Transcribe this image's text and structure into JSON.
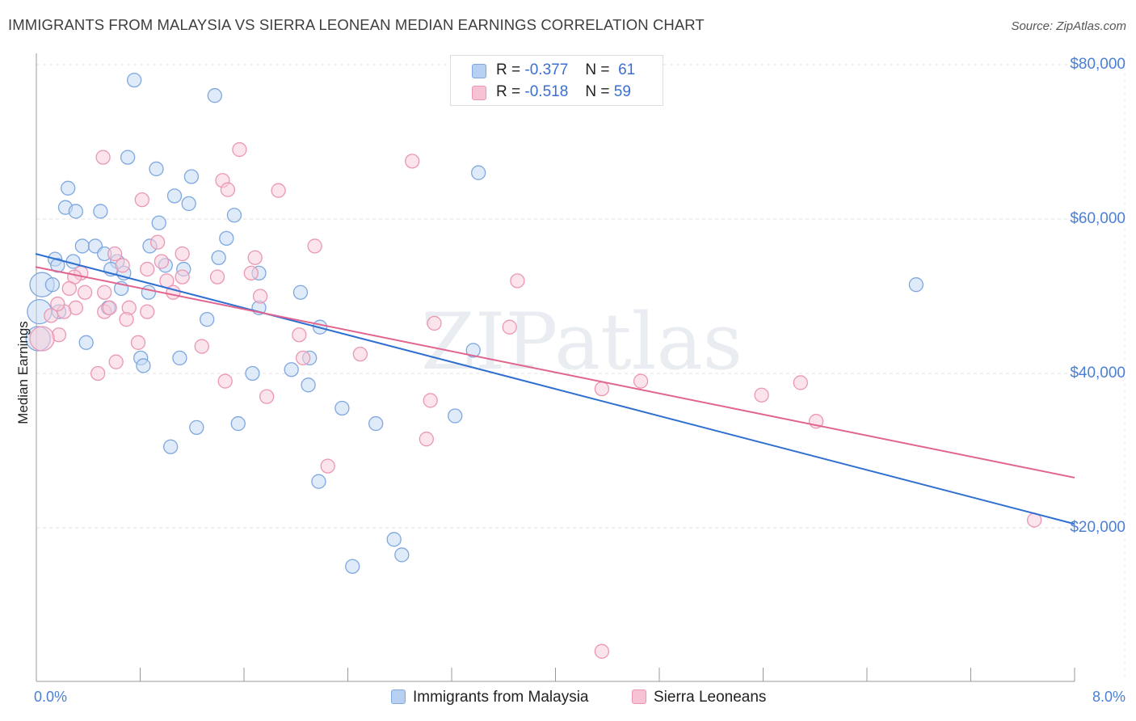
{
  "chart_data": {
    "type": "scatter",
    "title": "IMMIGRANTS FROM MALAYSIA VS SIERRA LEONEAN MEDIAN EARNINGS CORRELATION CHART",
    "source": "Source: ZipAtlas.com",
    "watermark": "ZIPatlas",
    "xlabel": "",
    "ylabel": "Median Earnings",
    "xlim": [
      0,
      8
    ],
    "ylim": [
      0,
      82000
    ],
    "x_tick_labels": [
      "0.0%",
      "8.0%"
    ],
    "y_ticks": [
      {
        "value": 20000,
        "label": "$20,000"
      },
      {
        "value": 40000,
        "label": "$40,000"
      },
      {
        "value": 60000,
        "label": "$60,000"
      },
      {
        "value": 80000,
        "label": "$80,000"
      }
    ],
    "grid": true,
    "legend": {
      "placement": "top-center",
      "rows": [
        {
          "r_label": "R =",
          "r_value": "-0.377",
          "n_label": "N =",
          "n_value": "61"
        },
        {
          "r_label": "R =",
          "r_value": "-0.518",
          "n_label": "N =",
          "n_value": "59"
        }
      ]
    },
    "series": [
      {
        "name": "Immigrants from Malaysia",
        "color": "#7fa7e0",
        "fill": "#c6daf4",
        "line_color": "#2f6fd0",
        "trend": {
          "x": [
            0,
            8
          ],
          "y": [
            55500,
            20500
          ]
        },
        "points": [
          {
            "x": 0.76,
            "y": 78000
          },
          {
            "x": 1.38,
            "y": 76000
          },
          {
            "x": 0.71,
            "y": 68000
          },
          {
            "x": 0.93,
            "y": 66500
          },
          {
            "x": 3.41,
            "y": 66000
          },
          {
            "x": 1.2,
            "y": 65500
          },
          {
            "x": 0.25,
            "y": 64000
          },
          {
            "x": 1.07,
            "y": 63000
          },
          {
            "x": 1.18,
            "y": 62000
          },
          {
            "x": 0.23,
            "y": 61500
          },
          {
            "x": 0.31,
            "y": 61000
          },
          {
            "x": 0.5,
            "y": 61000
          },
          {
            "x": 1.53,
            "y": 60500
          },
          {
            "x": 0.95,
            "y": 59500
          },
          {
            "x": 1.47,
            "y": 57500
          },
          {
            "x": 0.36,
            "y": 56500
          },
          {
            "x": 0.46,
            "y": 56500
          },
          {
            "x": 0.88,
            "y": 56500
          },
          {
            "x": 0.53,
            "y": 55500
          },
          {
            "x": 1.41,
            "y": 55000
          },
          {
            "x": 0.15,
            "y": 54800
          },
          {
            "x": 0.29,
            "y": 54500
          },
          {
            "x": 0.63,
            "y": 54500
          },
          {
            "x": 0.17,
            "y": 54000
          },
          {
            "x": 1.0,
            "y": 54000
          },
          {
            "x": 0.58,
            "y": 53500
          },
          {
            "x": 1.14,
            "y": 53500
          },
          {
            "x": 0.68,
            "y": 53000
          },
          {
            "x": 1.72,
            "y": 53000
          },
          {
            "x": 0.05,
            "y": 51500,
            "big": true
          },
          {
            "x": 0.13,
            "y": 51500
          },
          {
            "x": 0.66,
            "y": 51000
          },
          {
            "x": 6.78,
            "y": 51500
          },
          {
            "x": 0.87,
            "y": 50500
          },
          {
            "x": 2.04,
            "y": 50500
          },
          {
            "x": 0.56,
            "y": 48500
          },
          {
            "x": 1.72,
            "y": 48500
          },
          {
            "x": 0.03,
            "y": 48000,
            "big": true
          },
          {
            "x": 1.32,
            "y": 47000
          },
          {
            "x": 2.19,
            "y": 46000
          },
          {
            "x": 0.39,
            "y": 44000
          },
          {
            "x": 0.02,
            "y": 44500,
            "big": true
          },
          {
            "x": 3.37,
            "y": 43000
          },
          {
            "x": 0.81,
            "y": 42000
          },
          {
            "x": 1.11,
            "y": 42000
          },
          {
            "x": 2.11,
            "y": 42000
          },
          {
            "x": 0.83,
            "y": 41000
          },
          {
            "x": 1.67,
            "y": 40000
          },
          {
            "x": 1.97,
            "y": 40500
          },
          {
            "x": 2.1,
            "y": 38500
          },
          {
            "x": 2.36,
            "y": 35500
          },
          {
            "x": 3.23,
            "y": 34500
          },
          {
            "x": 1.56,
            "y": 33500
          },
          {
            "x": 2.62,
            "y": 33500
          },
          {
            "x": 1.24,
            "y": 33000
          },
          {
            "x": 1.04,
            "y": 30500
          },
          {
            "x": 2.18,
            "y": 26000
          },
          {
            "x": 2.76,
            "y": 18500
          },
          {
            "x": 2.82,
            "y": 16500
          },
          {
            "x": 2.44,
            "y": 15000
          },
          {
            "x": 0.18,
            "y": 48000
          }
        ]
      },
      {
        "name": "Sierra Leoneans",
        "color": "#eb97b4",
        "fill": "#f8cddb",
        "line_color": "#e0648e",
        "trend": {
          "x": [
            0,
            8
          ],
          "y": [
            53800,
            26500
          ]
        },
        "points": [
          {
            "x": 1.57,
            "y": 69000
          },
          {
            "x": 0.52,
            "y": 68000
          },
          {
            "x": 2.9,
            "y": 67500
          },
          {
            "x": 1.44,
            "y": 65000
          },
          {
            "x": 1.48,
            "y": 63800
          },
          {
            "x": 1.87,
            "y": 63700
          },
          {
            "x": 0.82,
            "y": 62500
          },
          {
            "x": 0.94,
            "y": 57000
          },
          {
            "x": 2.15,
            "y": 56500
          },
          {
            "x": 0.61,
            "y": 55500
          },
          {
            "x": 1.13,
            "y": 55500
          },
          {
            "x": 1.69,
            "y": 55000
          },
          {
            "x": 0.97,
            "y": 54500
          },
          {
            "x": 0.67,
            "y": 54000
          },
          {
            "x": 0.86,
            "y": 53500
          },
          {
            "x": 0.35,
            "y": 53000
          },
          {
            "x": 1.66,
            "y": 53000
          },
          {
            "x": 0.3,
            "y": 52500
          },
          {
            "x": 1.4,
            "y": 52500
          },
          {
            "x": 1.13,
            "y": 52500
          },
          {
            "x": 1.01,
            "y": 52000
          },
          {
            "x": 3.71,
            "y": 52000
          },
          {
            "x": 0.26,
            "y": 51000
          },
          {
            "x": 0.38,
            "y": 50500
          },
          {
            "x": 0.53,
            "y": 50500
          },
          {
            "x": 1.06,
            "y": 50500
          },
          {
            "x": 0.53,
            "y": 48000
          },
          {
            "x": 0.72,
            "y": 48500
          },
          {
            "x": 0.31,
            "y": 48500
          },
          {
            "x": 0.57,
            "y": 48500
          },
          {
            "x": 0.22,
            "y": 48000
          },
          {
            "x": 0.86,
            "y": 48000
          },
          {
            "x": 0.12,
            "y": 47500
          },
          {
            "x": 0.7,
            "y": 47000
          },
          {
            "x": 3.07,
            "y": 46500
          },
          {
            "x": 3.65,
            "y": 46000
          },
          {
            "x": 0.18,
            "y": 45000
          },
          {
            "x": 2.03,
            "y": 45000
          },
          {
            "x": 0.05,
            "y": 44500,
            "big": true
          },
          {
            "x": 0.79,
            "y": 44000
          },
          {
            "x": 1.28,
            "y": 43500
          },
          {
            "x": 2.5,
            "y": 42500
          },
          {
            "x": 2.06,
            "y": 42000
          },
          {
            "x": 0.62,
            "y": 41500
          },
          {
            "x": 0.48,
            "y": 40000
          },
          {
            "x": 1.46,
            "y": 39000
          },
          {
            "x": 4.66,
            "y": 39000
          },
          {
            "x": 5.89,
            "y": 38800
          },
          {
            "x": 4.36,
            "y": 38000
          },
          {
            "x": 5.59,
            "y": 37200
          },
          {
            "x": 1.78,
            "y": 37000
          },
          {
            "x": 3.04,
            "y": 36500
          },
          {
            "x": 6.01,
            "y": 33800
          },
          {
            "x": 3.01,
            "y": 31500
          },
          {
            "x": 2.25,
            "y": 28000
          },
          {
            "x": 7.69,
            "y": 21000
          },
          {
            "x": 4.36,
            "y": 4000
          },
          {
            "x": 0.17,
            "y": 49000
          },
          {
            "x": 1.73,
            "y": 50000
          }
        ]
      }
    ]
  }
}
